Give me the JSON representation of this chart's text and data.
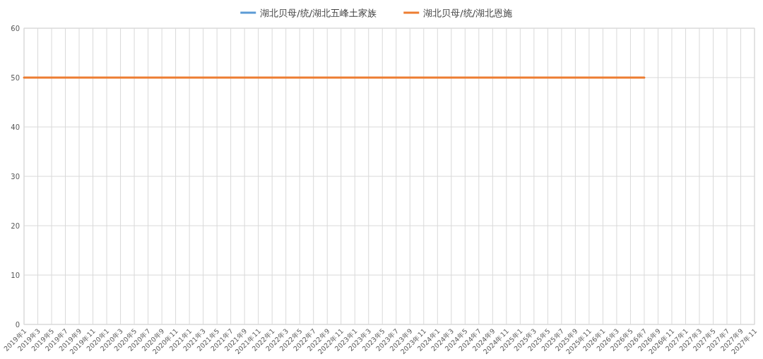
{
  "chart_data": {
    "type": "line",
    "categories": [
      "2019年1",
      "2019年3",
      "2019年5",
      "2019年7",
      "2019年9",
      "2019年11",
      "2020年1",
      "2020年3",
      "2020年5",
      "2020年7",
      "2020年9",
      "2020年11",
      "2021年1",
      "2021年3",
      "2021年5",
      "2021年7",
      "2021年9",
      "2021年11",
      "2022年1",
      "2022年3",
      "2022年5",
      "2022年7",
      "2022年9",
      "2022年11",
      "2023年1",
      "2023年3",
      "2023年5",
      "2023年7",
      "2023年9",
      "2023年11",
      "2024年1",
      "2024年3",
      "2024年5",
      "2024年7",
      "2024年9",
      "2024年11",
      "2025年1",
      "2025年3",
      "2025年5",
      "2025年7",
      "2025年9",
      "2025年11",
      "2026年1",
      "2026年3",
      "2026年5",
      "2026年7",
      "2026年9",
      "2026年11",
      "2027年1",
      "2027年3",
      "2027年5",
      "2027年7",
      "2027年9",
      "2027年11"
    ],
    "series": [
      {
        "name": "湖北贝母/统/湖北五峰土家族",
        "color": "#5b9bd5",
        "values": [
          null,
          null,
          null,
          null,
          null,
          null,
          null,
          null,
          null,
          null,
          null,
          null,
          null,
          null,
          null,
          null,
          null,
          null,
          null,
          null,
          null,
          null,
          null,
          null,
          null,
          null,
          null,
          null,
          null,
          null,
          null,
          null,
          null,
          null,
          null,
          null,
          null,
          null,
          null,
          null,
          null,
          null,
          null,
          null,
          null,
          null,
          null,
          null,
          null,
          null,
          null,
          null,
          null,
          null
        ]
      },
      {
        "name": "湖北贝母/统/湖北恩施",
        "color": "#ed7d31",
        "values": [
          50,
          50,
          50,
          50,
          50,
          50,
          50,
          50,
          50,
          50,
          50,
          50,
          50,
          50,
          50,
          50,
          50,
          50,
          50,
          50,
          50,
          50,
          50,
          50,
          50,
          50,
          50,
          50,
          50,
          50,
          50,
          50,
          50,
          50,
          50,
          50,
          50,
          50,
          50,
          50,
          50,
          50,
          50,
          50,
          50,
          50,
          null,
          null,
          null,
          null,
          null,
          null,
          null,
          null
        ]
      }
    ],
    "ylim": [
      0,
      60
    ],
    "yticks": [
      0,
      10,
      20,
      30,
      40,
      50,
      60
    ],
    "grid": true,
    "legend": "top",
    "marker": "none",
    "line_style": "solid"
  }
}
